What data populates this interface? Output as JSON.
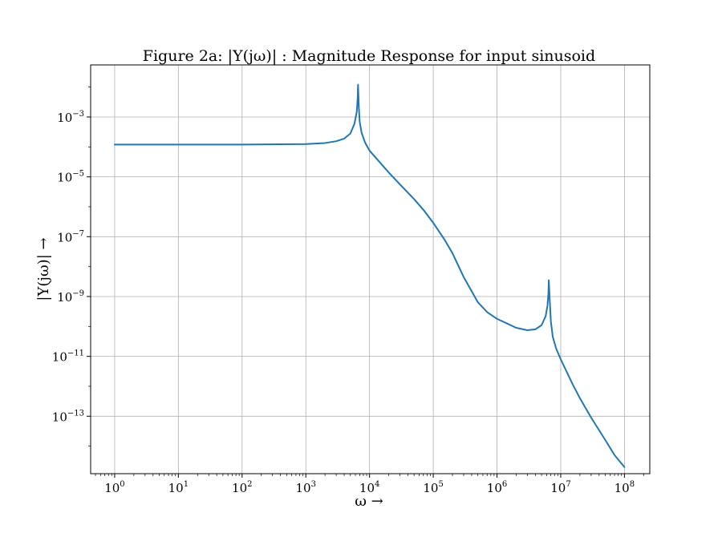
{
  "chart_data": {
    "type": "line",
    "title": "Figure 2a: |Y(jω)| : Magnitude Response for input sinusoid",
    "xlabel": "ω →",
    "ylabel": "|Y(jω)| →",
    "xscale": "log",
    "yscale": "log",
    "xlim": [
      0.42,
      250000000.0
    ],
    "ylim": [
      1.2e-15,
      0.055
    ],
    "xticks": [
      {
        "base": "10",
        "exp": "0",
        "value": 1
      },
      {
        "base": "10",
        "exp": "1",
        "value": 10
      },
      {
        "base": "10",
        "exp": "2",
        "value": 100
      },
      {
        "base": "10",
        "exp": "3",
        "value": 1000
      },
      {
        "base": "10",
        "exp": "4",
        "value": 10000
      },
      {
        "base": "10",
        "exp": "5",
        "value": 100000
      },
      {
        "base": "10",
        "exp": "6",
        "value": 1000000
      },
      {
        "base": "10",
        "exp": "7",
        "value": 10000000
      },
      {
        "base": "10",
        "exp": "8",
        "value": 100000000
      }
    ],
    "yticks": [
      {
        "base": "10",
        "exp": "−3",
        "value": 0.001
      },
      {
        "base": "10",
        "exp": "−5",
        "value": 1e-05
      },
      {
        "base": "10",
        "exp": "−7",
        "value": 1e-07
      },
      {
        "base": "10",
        "exp": "−9",
        "value": 1e-09
      },
      {
        "base": "10",
        "exp": "−11",
        "value": 1e-11
      },
      {
        "base": "10",
        "exp": "−13",
        "value": 1e-13
      }
    ],
    "grid": true,
    "series": [
      {
        "color": "#1f77b4",
        "x": [
          1,
          10,
          100,
          1000,
          2000,
          3000,
          4000,
          5000,
          5800,
          6300,
          6500,
          6600,
          6700,
          6800,
          7000,
          7500,
          8500,
          10000,
          15000,
          20000,
          30000,
          50000,
          70000,
          100000,
          150000,
          200000,
          300000,
          500000,
          700000,
          1000000,
          1500000,
          2000000,
          3000000,
          4000000,
          5000000,
          5800000,
          6200000,
          6400000,
          6500000,
          6700000,
          7000000,
          7500000,
          8500000,
          10000000,
          15000000,
          20000000,
          30000000,
          50000000,
          70000000,
          100000000
        ],
        "y": [
          0.00012,
          0.00012,
          0.00012,
          0.000125,
          0.000135,
          0.000155,
          0.00019,
          0.00028,
          0.0006,
          0.0015,
          0.004,
          0.012,
          0.005,
          0.002,
          0.0007,
          0.0003,
          0.00014,
          7.5e-05,
          2.8e-05,
          1.4e-05,
          5.6e-06,
          1.8e-06,
          7.9e-07,
          2.9e-07,
          8e-08,
          2.8e-08,
          4.5e-09,
          6.5e-10,
          3e-10,
          1.8e-10,
          1.2e-10,
          9e-11,
          7.5e-11,
          8e-11,
          1.1e-10,
          2.2e-10,
          5e-10,
          1.2e-09,
          3.5e-09,
          9e-10,
          1.5e-10,
          4.5e-11,
          1.8e-11,
          8e-12,
          1.3e-12,
          4e-13,
          9e-14,
          1.6e-14,
          5e-15,
          2e-15
        ]
      }
    ]
  }
}
